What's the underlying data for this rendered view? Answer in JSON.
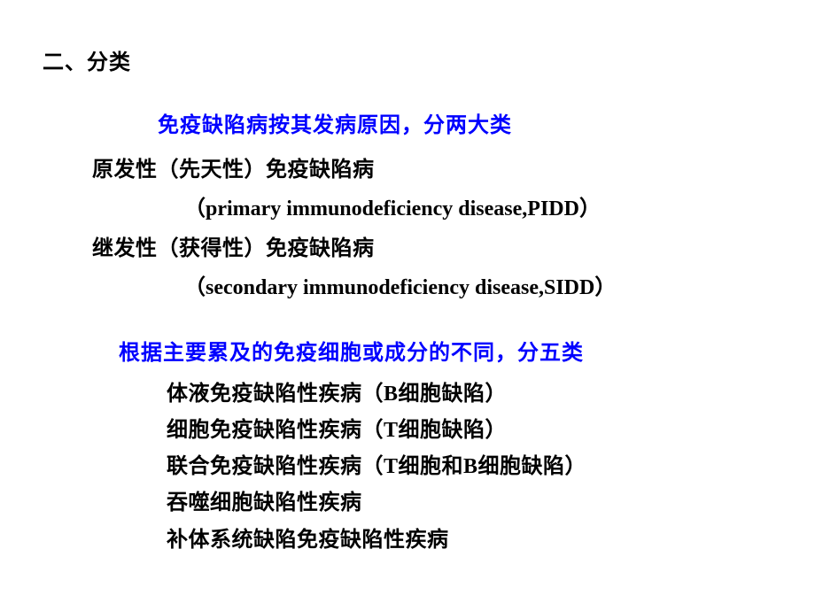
{
  "colors": {
    "heading_blue": "#0000ff",
    "body_black": "#000000",
    "background": "#ffffff"
  },
  "typography": {
    "base_fontsize": 24,
    "font_weight": "bold",
    "cjk_font": "SimSun",
    "latin_font": "Times New Roman"
  },
  "section_title": "二、分类",
  "group1": {
    "heading": "免疫缺陷病按其发病原因，分两大类",
    "items": [
      {
        "cn": "原发性（先天性）免疫缺陷病",
        "paren": "（primary immunodeficiency disease,PIDD）"
      },
      {
        "cn": "继发性（获得性）免疫缺陷病",
        "paren": "（secondary immunodeficiency disease,SIDD）"
      }
    ]
  },
  "group2": {
    "heading": "根据主要累及的免疫细胞或成分的不同，分五类",
    "items": [
      "体液免疫缺陷性疾病（B细胞缺陷）",
      "细胞免疫缺陷性疾病（T细胞缺陷）",
      "联合免疫缺陷性疾病（T细胞和B细胞缺陷）",
      "吞噬细胞缺陷性疾病",
      "补体系统缺陷免疫缺陷性疾病"
    ]
  }
}
